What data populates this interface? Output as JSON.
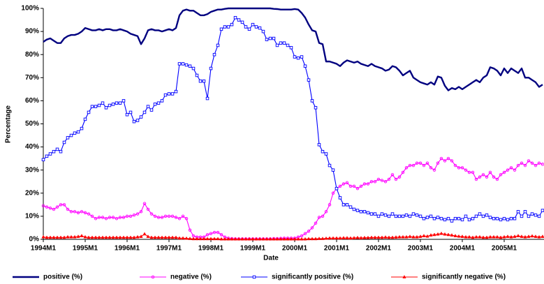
{
  "chart_data": {
    "type": "line",
    "x_label": "Date",
    "y_label": "Percentage",
    "categories": [
      "1994M1",
      null,
      null,
      null,
      null,
      null,
      null,
      null,
      null,
      null,
      null,
      null,
      "1995M1",
      null,
      null,
      null,
      null,
      null,
      null,
      null,
      null,
      null,
      null,
      null,
      "1996M1",
      null,
      null,
      null,
      null,
      null,
      null,
      null,
      null,
      null,
      null,
      null,
      "1997M1",
      null,
      null,
      null,
      null,
      null,
      null,
      null,
      null,
      null,
      null,
      null,
      "1998M1",
      null,
      null,
      null,
      null,
      null,
      null,
      null,
      null,
      null,
      null,
      null,
      "1999M1",
      null,
      null,
      null,
      null,
      null,
      null,
      null,
      null,
      null,
      null,
      null,
      "2000M1",
      null,
      null,
      null,
      null,
      null,
      null,
      null,
      null,
      null,
      null,
      null,
      "2001M1",
      null,
      null,
      null,
      null,
      null,
      null,
      null,
      null,
      null,
      null,
      null,
      "2002M1",
      null,
      null,
      null,
      null,
      null,
      null,
      null,
      null,
      null,
      null,
      null,
      "2003M1",
      null,
      null,
      null,
      null,
      null,
      null,
      null,
      null,
      null,
      null,
      null,
      "2004M1",
      null,
      null,
      null,
      null,
      null,
      null,
      null,
      null,
      null,
      null,
      null,
      "2005M1",
      null,
      null,
      null,
      null,
      null,
      null,
      null,
      null,
      null,
      null,
      null
    ],
    "ylim": [
      0,
      100
    ],
    "yticks": [
      {
        "value": 0,
        "label": "0%"
      },
      {
        "value": 10,
        "label": "10%"
      },
      {
        "value": 20,
        "label": "20%"
      },
      {
        "value": 30,
        "label": "30%"
      },
      {
        "value": 40,
        "label": "40%"
      },
      {
        "value": 50,
        "label": "50%"
      },
      {
        "value": 60,
        "label": "60%"
      },
      {
        "value": 70,
        "label": "70%"
      },
      {
        "value": 80,
        "label": "80%"
      },
      {
        "value": 90,
        "label": "90%"
      },
      {
        "value": 100,
        "label": "100%"
      }
    ],
    "grid": false,
    "legend": "bottom",
    "series": [
      {
        "name": "positive (%)",
        "color": "#000080",
        "marker": "none",
        "values": [
          85.5,
          86.5,
          87,
          86,
          85,
          85,
          87,
          88,
          88.5,
          88.5,
          89,
          90,
          91.5,
          91,
          90.5,
          90.5,
          91,
          90.5,
          91,
          91,
          90.5,
          90.5,
          91,
          90.5,
          90,
          89,
          88.5,
          88,
          84.5,
          87,
          90.5,
          91,
          90.5,
          90.5,
          90,
          90.5,
          91,
          90.5,
          91.5,
          97,
          99,
          99.5,
          99,
          99,
          98,
          97,
          97,
          97.5,
          98.5,
          99,
          99.5,
          99.5,
          99.8,
          100,
          100,
          100,
          100,
          100,
          100,
          100,
          100,
          100,
          100,
          100,
          100,
          100,
          99.8,
          99.7,
          99.5,
          99.5,
          99.5,
          99.5,
          99.7,
          99.5,
          98,
          96,
          93,
          90.5,
          90,
          85,
          84.5,
          77,
          77,
          76.5,
          76,
          75,
          76.5,
          77.5,
          77,
          76.5,
          77,
          76,
          75.5,
          75,
          76,
          75,
          74.5,
          74,
          73,
          73.5,
          75,
          74.5,
          73,
          71,
          72,
          73,
          70,
          69,
          68,
          67.5,
          67,
          68,
          67,
          70.5,
          70,
          66.5,
          64.5,
          65.5,
          65,
          66,
          65,
          66,
          67,
          68,
          69,
          68,
          70,
          71,
          74.5,
          74,
          73,
          71,
          74,
          72,
          74,
          73,
          72,
          74,
          70,
          70,
          69,
          68,
          66,
          67
        ]
      },
      {
        "name": "negative (%)",
        "color": "#ff00ff",
        "marker": "circle",
        "values": [
          14.5,
          14,
          13.5,
          13,
          14,
          15,
          15,
          13,
          12,
          12,
          11.5,
          12,
          11.5,
          11,
          10,
          9,
          9.5,
          9.5,
          9,
          9.5,
          9.5,
          9,
          9.5,
          9.5,
          10,
          10,
          10.5,
          11,
          12,
          15.5,
          13,
          11,
          10,
          9.5,
          9.5,
          10,
          10,
          10,
          9.5,
          9,
          10,
          9,
          4,
          1.5,
          1,
          1,
          1,
          2,
          2.5,
          3,
          3,
          2,
          1,
          0.5,
          0.3,
          0.2,
          0.2,
          0.2,
          0.2,
          0.2,
          0.2,
          0.2,
          0.2,
          0.2,
          0.2,
          0.2,
          0.3,
          0.3,
          0.4,
          0.5,
          0.5,
          0.5,
          0.5,
          1,
          1.5,
          2.5,
          3.5,
          5,
          7,
          9.5,
          10,
          12,
          15,
          20,
          22,
          23,
          24,
          24.5,
          23,
          23,
          22,
          23,
          24,
          24,
          25,
          25,
          26,
          25.5,
          25,
          26,
          28,
          26,
          27,
          29,
          31,
          32,
          32,
          33,
          33,
          32,
          33,
          31,
          30,
          33,
          35,
          34,
          35,
          34,
          32,
          31,
          31,
          30,
          29,
          29,
          26,
          27,
          28,
          27,
          29,
          27,
          26,
          28,
          29,
          30,
          31,
          30,
          32,
          33,
          32,
          34,
          33,
          32,
          33,
          32.5
        ]
      },
      {
        "name": "significantly positive (%)",
        "color": "#0000ff",
        "marker": "square",
        "values": [
          34.5,
          36,
          37,
          38,
          39,
          38,
          42,
          44,
          45,
          46,
          46.5,
          48,
          52,
          55,
          57.5,
          57.5,
          58,
          59,
          57,
          58,
          58.5,
          59,
          59,
          60,
          54,
          55,
          51,
          51.5,
          53,
          55,
          57.5,
          56,
          58.5,
          59,
          60,
          62.5,
          63,
          63,
          64,
          76,
          76,
          75.5,
          75,
          74,
          71,
          68.5,
          68.5,
          61,
          74,
          80,
          84,
          91,
          92,
          92,
          93,
          96,
          95,
          94,
          92,
          91,
          93,
          92,
          91.5,
          90,
          86.5,
          87,
          87,
          84,
          85,
          85,
          84,
          83,
          79,
          78.5,
          79,
          75,
          69,
          60,
          57,
          41,
          38,
          37,
          32,
          30,
          22,
          18,
          15,
          15,
          14,
          13,
          12.5,
          12,
          12,
          11.5,
          11,
          11,
          10,
          11,
          10.5,
          10,
          11,
          10,
          10,
          10,
          10.5,
          10,
          11,
          10.5,
          10,
          9,
          9.5,
          10,
          9,
          9.5,
          9,
          8.5,
          9,
          8,
          9,
          9,
          8.5,
          10,
          8.5,
          9,
          10,
          11,
          10,
          10.5,
          9.5,
          9,
          9,
          8.5,
          9,
          8.5,
          9,
          9,
          12,
          10,
          12,
          10,
          11,
          10.5,
          10,
          12.5
        ]
      },
      {
        "name": "significantly negative (%)",
        "color": "#ff0000",
        "marker": "triangle",
        "values": [
          1,
          0.8,
          0.8,
          0.8,
          0.8,
          0.8,
          0.8,
          1,
          1,
          1,
          1.2,
          1.5,
          1,
          0.8,
          0.8,
          0.8,
          0.8,
          0.8,
          0.8,
          0.8,
          0.8,
          0.8,
          0.8,
          0.8,
          0.8,
          0.8,
          0.8,
          1,
          1.2,
          2.3,
          1.2,
          0.8,
          0.8,
          0.8,
          0.8,
          0.8,
          0.8,
          0.8,
          0.8,
          0.5,
          0.5,
          0.4,
          0.3,
          0.2,
          0.2,
          0.2,
          0.2,
          0.2,
          0.2,
          0.2,
          0.2,
          0.1,
          0.1,
          0.1,
          0.1,
          0.1,
          0.1,
          0.1,
          0.1,
          0.1,
          0.1,
          0.1,
          0.1,
          0.1,
          0.1,
          0.1,
          0.1,
          0.1,
          0.1,
          0.1,
          0.1,
          0.1,
          0.1,
          0.1,
          0.1,
          0.1,
          0.2,
          0.2,
          0.2,
          0.3,
          0.3,
          0.4,
          0.5,
          0.5,
          0.5,
          0.5,
          0.6,
          0.6,
          0.5,
          0.6,
          0.7,
          0.6,
          0.7,
          0.7,
          0.8,
          0.8,
          0.8,
          0.8,
          0.9,
          0.8,
          0.8,
          0.9,
          1,
          1,
          1,
          1.2,
          1,
          1,
          1.2,
          1.5,
          1.3,
          1.8,
          2,
          2.2,
          2.5,
          2.2,
          2,
          1.8,
          1.5,
          1.3,
          1.2,
          1,
          1,
          0.8,
          1,
          1,
          0.8,
          0.8,
          1,
          1,
          1,
          0.8,
          1,
          1.2,
          1,
          1.2,
          1.5,
          1.2,
          1,
          1.2,
          1.4,
          1.2,
          1,
          1.2
        ]
      }
    ]
  }
}
